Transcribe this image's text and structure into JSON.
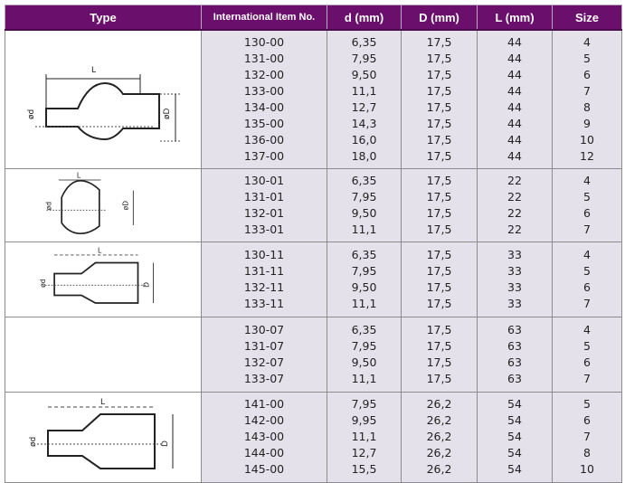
{
  "headers": [
    "Type",
    "International Item No.",
    "d (mm)",
    "D (mm)",
    "L (mm)",
    "Size"
  ],
  "groups": [
    {
      "drawing": "bulb-sleeve-long-icon",
      "height": 153,
      "labels": {
        "L": "L",
        "d": "ød",
        "D": "øD"
      },
      "items": [
        "130-00",
        "131-00",
        "132-00",
        "133-00",
        "134-00",
        "135-00",
        "136-00",
        "137-00"
      ],
      "d": [
        "6,35",
        "7,95",
        "9,50",
        "11,1",
        "12,7",
        "14,3",
        "16,0",
        "18,0"
      ],
      "D": [
        "17,5",
        "17,5",
        "17,5",
        "17,5",
        "17,5",
        "17,5",
        "17,5",
        "17,5"
      ],
      "L": [
        "44",
        "44",
        "44",
        "44",
        "44",
        "44",
        "44",
        "44"
      ],
      "size": [
        "4",
        "5",
        "6",
        "7",
        "8",
        "9",
        "10",
        "12"
      ]
    },
    {
      "drawing": "bulb-sleeve-short-icon",
      "height": 81,
      "labels": {
        "L": "L",
        "d": "ød",
        "D": "øD"
      },
      "items": [
        "130-01",
        "131-01",
        "132-01",
        "133-01"
      ],
      "d": [
        "6,35",
        "7,95",
        "9,50",
        "11,1"
      ],
      "D": [
        "17,5",
        "17,5",
        "17,5",
        "17,5"
      ],
      "L": [
        "22",
        "22",
        "22",
        "22"
      ],
      "size": [
        "4",
        "5",
        "6",
        "7"
      ]
    },
    {
      "drawing": "tapered-sleeve-icon",
      "height": 83,
      "labels": {
        "L": "L",
        "d": "ød",
        "D": "D"
      },
      "items": [
        "130-11",
        "131-11",
        "132-11",
        "133-11"
      ],
      "d": [
        "6,35",
        "7,95",
        "9,50",
        "11,1"
      ],
      "D": [
        "17,5",
        "17,5",
        "17,5",
        "17,5"
      ],
      "L": [
        "33",
        "33",
        "33",
        "33"
      ],
      "size": [
        "4",
        "5",
        "6",
        "7"
      ]
    },
    {
      "drawing": "",
      "height": 83,
      "items": [
        "130-07",
        "131-07",
        "132-07",
        "133-07"
      ],
      "d": [
        "6,35",
        "7,95",
        "9,50",
        "11,1"
      ],
      "D": [
        "17,5",
        "17,5",
        "17,5",
        "17,5"
      ],
      "L": [
        "63",
        "63",
        "63",
        "63"
      ],
      "size": [
        "4",
        "5",
        "6",
        "7"
      ]
    },
    {
      "drawing": "tapered-sleeve-large-icon",
      "height": 100,
      "labels": {
        "L": "L",
        "d": "ød",
        "D": "D"
      },
      "items": [
        "141-00",
        "142-00",
        "143-00",
        "144-00",
        "145-00"
      ],
      "d": [
        "7,95",
        "9,95",
        "11,1",
        "12,7",
        "15,5"
      ],
      "D": [
        "26,2",
        "26,2",
        "26,2",
        "26,2",
        "26,2"
      ],
      "L": [
        "54",
        "54",
        "54",
        "54",
        "54"
      ],
      "size": [
        "5",
        "6",
        "7",
        "8",
        "10"
      ]
    }
  ]
}
